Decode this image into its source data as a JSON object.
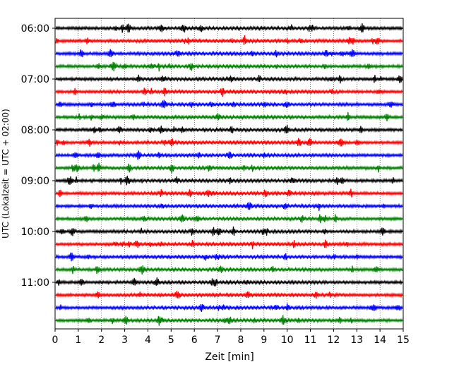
{
  "chart_data": {
    "type": "line",
    "title": "",
    "xlabel": "Zeit  [min]",
    "ylabel": "UTC (Lokalzeit = UTC + 02:00)",
    "xlim": [
      0,
      15
    ],
    "x_ticks": [
      0,
      1,
      2,
      3,
      4,
      5,
      6,
      7,
      8,
      9,
      10,
      11,
      12,
      13,
      14,
      15
    ],
    "y_ticks": [
      {
        "label": "06:00",
        "trace_index": 0
      },
      {
        "label": "07:00",
        "trace_index": 4
      },
      {
        "label": "08:00",
        "trace_index": 8
      },
      {
        "label": "09:00",
        "trace_index": 12
      },
      {
        "label": "10:00",
        "trace_index": 16
      },
      {
        "label": "11:00",
        "trace_index": 20
      }
    ],
    "grid": "vertical dotted at each minute",
    "trace_minutes": 15,
    "color_cycle": [
      "#000000",
      "#ff0000",
      "#0000ff",
      "#008000"
    ],
    "traces": [
      {
        "start": "06:00",
        "color": "#000000"
      },
      {
        "start": "06:15",
        "color": "#ff0000"
      },
      {
        "start": "06:30",
        "color": "#0000ff"
      },
      {
        "start": "06:45",
        "color": "#008000"
      },
      {
        "start": "07:00",
        "color": "#000000"
      },
      {
        "start": "07:15",
        "color": "#ff0000"
      },
      {
        "start": "07:30",
        "color": "#0000ff"
      },
      {
        "start": "07:45",
        "color": "#008000"
      },
      {
        "start": "08:00",
        "color": "#000000"
      },
      {
        "start": "08:15",
        "color": "#ff0000"
      },
      {
        "start": "08:30",
        "color": "#0000ff"
      },
      {
        "start": "08:45",
        "color": "#008000"
      },
      {
        "start": "09:00",
        "color": "#000000"
      },
      {
        "start": "09:15",
        "color": "#ff0000"
      },
      {
        "start": "09:30",
        "color": "#0000ff"
      },
      {
        "start": "09:45",
        "color": "#008000"
      },
      {
        "start": "10:00",
        "color": "#000000"
      },
      {
        "start": "10:15",
        "color": "#ff0000"
      },
      {
        "start": "10:30",
        "color": "#0000ff"
      },
      {
        "start": "10:45",
        "color": "#008000"
      },
      {
        "start": "11:00",
        "color": "#000000"
      },
      {
        "start": "11:15",
        "color": "#ff0000"
      },
      {
        "start": "11:30",
        "color": "#0000ff"
      },
      {
        "start": "11:45",
        "color": "#008000"
      }
    ]
  }
}
